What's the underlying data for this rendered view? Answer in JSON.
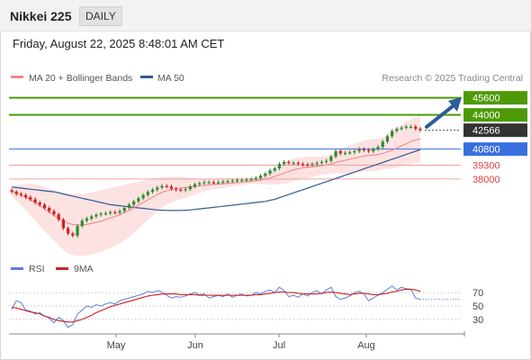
{
  "header": {
    "title": "Nikkei 225",
    "period": "DAILY",
    "timestamp": "Friday, August 22, 2025 8:48:01 AM CET"
  },
  "legend": {
    "ma20": "MA 20 + Bollinger Bands",
    "ma50": "MA 50",
    "credit": "Research © 2025 Trading Central",
    "rsi": "RSI",
    "ma9": "9MA"
  },
  "colors": {
    "resistance": "#4d9a06",
    "support": "#e04040",
    "pivot": "#3a6fe0",
    "ma50": "#2e5c99",
    "ma20": "#f08888",
    "bollinger_fill": "#fde2e2",
    "candle_up": "#2f8a2f",
    "candle_down": "#cc2222",
    "rsi": "#5a7fd8",
    "arrow": "#2e5c99"
  },
  "chart_data": [
    {
      "type": "candlestick",
      "series": [
        {
          "name": "MA 20 + Bollinger Bands"
        },
        {
          "name": "MA 50"
        }
      ],
      "x_ticks": [
        "May",
        "Jun",
        "Jul",
        "Aug"
      ],
      "levels": [
        {
          "value": 45600,
          "label": "45600",
          "kind": "resistance"
        },
        {
          "value": 44000,
          "label": "44000",
          "kind": "resistance"
        },
        {
          "value": 42566,
          "label": "42566",
          "kind": "last"
        },
        {
          "value": 40800,
          "label": "40800",
          "kind": "pivot"
        },
        {
          "value": 39300,
          "label": "39300",
          "kind": "support"
        },
        {
          "value": 38000,
          "label": "38000",
          "kind": "support"
        }
      ],
      "close": [
        36800,
        36600,
        36500,
        36300,
        36100,
        35800,
        35600,
        35300,
        35000,
        34700,
        34200,
        33400,
        32900,
        32700,
        33600,
        34100,
        34300,
        34500,
        34650,
        34750,
        34800,
        34900,
        34850,
        35000,
        35300,
        35600,
        35900,
        36200,
        36500,
        36800,
        37000,
        37200,
        37350,
        37300,
        37100,
        37000,
        36950,
        37050,
        37300,
        37500,
        37600,
        37700,
        37700,
        37650,
        37700,
        37750,
        37800,
        37850,
        37900,
        37900,
        37950,
        38000,
        38100,
        38300,
        38500,
        38800,
        39000,
        39400,
        39600,
        39500,
        39500,
        39400,
        39350,
        39300,
        39400,
        39500,
        39600,
        39700,
        40100,
        40600,
        40400,
        40450,
        40500,
        40600,
        40800,
        40700,
        40600,
        40800,
        41000,
        41500,
        42000,
        42500,
        42700,
        42800,
        42900,
        42900,
        42700,
        42566
      ],
      "ma20": [
        36900,
        36700,
        36500,
        36300,
        36050,
        35800,
        35500,
        35200,
        34900,
        34600,
        34300,
        34050,
        33850,
        33750,
        33700,
        33700,
        33750,
        33850,
        33950,
        34050,
        34200,
        34350,
        34500,
        34650,
        34850,
        35050,
        35300,
        35550,
        35800,
        36050,
        36300,
        36550,
        36750,
        36900,
        37000,
        37100,
        37150,
        37200,
        37250,
        37300,
        37350,
        37400,
        37450,
        37500,
        37520,
        37550,
        37580,
        37620,
        37660,
        37700,
        37750,
        37800,
        37850,
        37900,
        38000,
        38100,
        38250,
        38400,
        38550,
        38700,
        38850,
        38950,
        39050,
        39100,
        39150,
        39200,
        39250,
        39300,
        39400,
        39550,
        39650,
        39750,
        39850,
        39950,
        40050,
        40150,
        40200,
        40250,
        40300,
        40400,
        40550,
        40700,
        40900,
        41100,
        41300,
        41500,
        41650,
        41750
      ],
      "bb_upper": [
        37400,
        37400,
        37450,
        37500,
        37550,
        37500,
        37400,
        37250,
        37100,
        36950,
        36800,
        36700,
        36650,
        36600,
        36600,
        36600,
        36650,
        36750,
        36850,
        36950,
        37050,
        37150,
        37250,
        37350,
        37450,
        37550,
        37650,
        37750,
        37850,
        37950,
        38050,
        38100,
        38150,
        38200,
        38200,
        38200,
        38200,
        38150,
        38100,
        38050,
        38000,
        37950,
        37950,
        37950,
        37950,
        37950,
        37950,
        37950,
        37950,
        37950,
        38000,
        38050,
        38150,
        38300,
        38500,
        38750,
        39000,
        39300,
        39550,
        39750,
        39900,
        40000,
        40050,
        40100,
        40100,
        40100,
        40100,
        40150,
        40300,
        40550,
        40800,
        41000,
        41150,
        41300,
        41450,
        41600,
        41700,
        41750,
        41800,
        41900,
        42150,
        42450,
        42750,
        43050,
        43350,
        43600,
        43800,
        43900
      ],
      "bb_lower": [
        36400,
        36000,
        35550,
        35100,
        34550,
        34100,
        33600,
        33150,
        32700,
        32250,
        31800,
        31400,
        31050,
        30900,
        30800,
        30800,
        30850,
        30950,
        31050,
        31150,
        31350,
        31550,
        31750,
        31950,
        32250,
        32550,
        32950,
        33350,
        33750,
        34150,
        34550,
        35000,
        35350,
        35600,
        35800,
        36000,
        36100,
        36250,
        36400,
        36550,
        36700,
        36850,
        36950,
        37050,
        37090,
        37150,
        37210,
        37290,
        37370,
        37450,
        37500,
        37550,
        37550,
        37500,
        37500,
        37450,
        37500,
        37500,
        37550,
        37650,
        37800,
        37900,
        38050,
        38100,
        38200,
        38300,
        38400,
        38450,
        38500,
        38550,
        38500,
        38500,
        38550,
        38600,
        38650,
        38700,
        38700,
        38750,
        38800,
        38900,
        38950,
        38950,
        39050,
        39150,
        39250,
        39400,
        39500,
        39600
      ],
      "ma50": [
        37250,
        37200,
        37150,
        37100,
        37050,
        37000,
        36950,
        36900,
        36850,
        36800,
        36700,
        36600,
        36500,
        36400,
        36300,
        36200,
        36100,
        36000,
        35900,
        35800,
        35700,
        35600,
        35550,
        35500,
        35450,
        35400,
        35350,
        35300,
        35250,
        35200,
        35150,
        35100,
        35080,
        35060,
        35050,
        35050,
        35060,
        35080,
        35100,
        35150,
        35200,
        35250,
        35300,
        35350,
        35400,
        35450,
        35500,
        35550,
        35600,
        35650,
        35700,
        35750,
        35800,
        35850,
        35900,
        36000,
        36100,
        36250,
        36400,
        36550,
        36700,
        36850,
        37000,
        37150,
        37300,
        37450,
        37600,
        37750,
        37900,
        38050,
        38200,
        38350,
        38500,
        38650,
        38800,
        38950,
        39100,
        39250,
        39400,
        39550,
        39700,
        39850,
        40000,
        40150,
        40300,
        40450,
        40600,
        40750
      ],
      "ylim": [
        31000,
        46500
      ]
    },
    {
      "type": "line",
      "series": [
        {
          "name": "RSI"
        },
        {
          "name": "9MA"
        }
      ],
      "y_ticks": [
        70,
        50,
        30
      ],
      "ylim": [
        15,
        85
      ],
      "rsi": [
        45,
        58,
        55,
        44,
        42,
        38,
        40,
        35,
        32,
        25,
        33,
        28,
        18,
        22,
        38,
        44,
        50,
        48,
        52,
        50,
        53,
        55,
        53,
        58,
        60,
        62,
        64,
        66,
        68,
        72,
        70,
        73,
        71,
        66,
        62,
        64,
        63,
        65,
        68,
        70,
        67,
        68,
        62,
        64,
        66,
        64,
        68,
        63,
        66,
        68,
        65,
        66,
        70,
        68,
        72,
        74,
        70,
        78,
        73,
        64,
        66,
        63,
        68,
        65,
        70,
        73,
        68,
        74,
        78,
        64,
        60,
        62,
        65,
        70,
        72,
        68,
        58,
        62,
        66,
        70,
        75,
        80,
        74,
        78,
        76,
        75,
        62,
        60
      ],
      "ma9": [
        48,
        47,
        45,
        43,
        41,
        40,
        38,
        35,
        33,
        30,
        28,
        27,
        26,
        26,
        28,
        30,
        33,
        36,
        40,
        43,
        46,
        49,
        51,
        53,
        55,
        57,
        59,
        61,
        63,
        65,
        66,
        67,
        68,
        68,
        68,
        68,
        67,
        67,
        67,
        67,
        66,
        66,
        66,
        66,
        66,
        66,
        66,
        66,
        66,
        66,
        66,
        66,
        67,
        67,
        68,
        69,
        70,
        71,
        71,
        70,
        70,
        69,
        68,
        68,
        68,
        68,
        69,
        70,
        71,
        70,
        69,
        68,
        67,
        68,
        69,
        69,
        68,
        67,
        67,
        68,
        69,
        71,
        72,
        74,
        75,
        75,
        74,
        72
      ]
    }
  ]
}
